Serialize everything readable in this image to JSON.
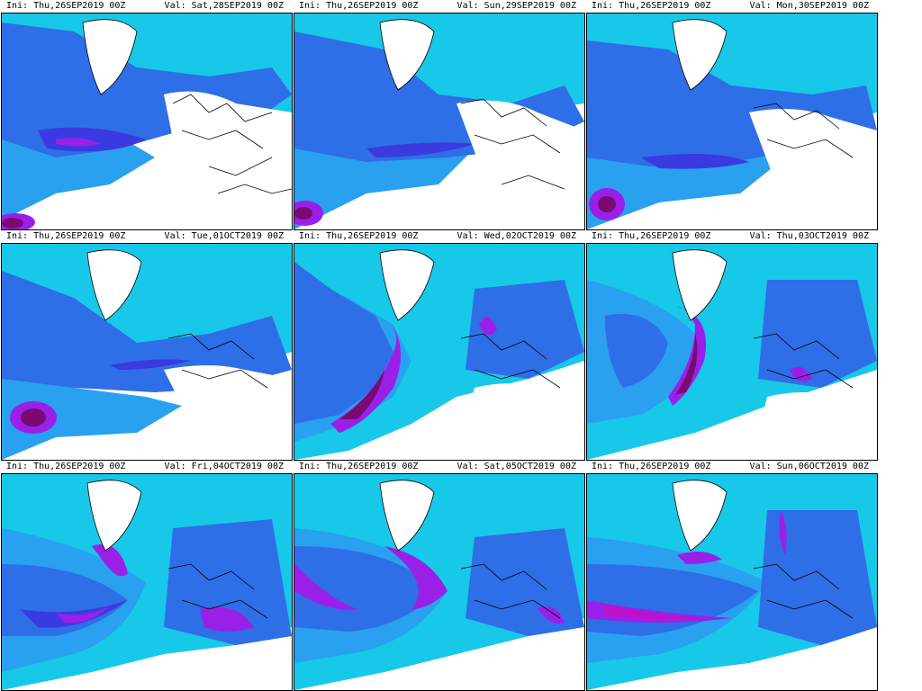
{
  "colors": {
    "land_line": "#000000",
    "low": "#41e0a8",
    "light": "#18c8e8",
    "mid": "#2aa0f0",
    "med": "#2e6ee6",
    "high": "#3a3ae0",
    "vhigh": "#9a20e8",
    "max": "#c010c8",
    "core": "#7a0a70",
    "background": "#ffffff"
  },
  "panels": [
    {
      "ini": "Ini: Thu,26SEP2019 00Z",
      "val": "Val: Sat,28SEP2019 00Z",
      "jet_level": 0.35
    },
    {
      "ini": "Ini: Thu,26SEP2019 00Z",
      "val": "Val: Sun,29SEP2019 00Z",
      "jet_level": 0.4
    },
    {
      "ini": "Ini: Thu,26SEP2019 00Z",
      "val": "Val: Mon,30SEP2019 00Z",
      "jet_level": 0.4
    },
    {
      "ini": "Ini: Thu,26SEP2019 00Z",
      "val": "Val: Tue,01OCT2019 00Z",
      "jet_level": 0.45
    },
    {
      "ini": "Ini: Thu,26SEP2019 00Z",
      "val": "Val: Wed,02OCT2019 00Z",
      "jet_level": 0.8
    },
    {
      "ini": "Ini: Thu,26SEP2019 00Z",
      "val": "Val: Thu,03OCT2019 00Z",
      "jet_level": 0.85
    },
    {
      "ini": "Ini: Thu,26SEP2019 00Z",
      "val": "Val: Fri,04OCT2019 00Z",
      "jet_level": 0.6
    },
    {
      "ini": "Ini: Thu,26SEP2019 00Z",
      "val": "Val: Sat,05OCT2019 00Z",
      "jet_level": 0.6
    },
    {
      "ini": "Ini: Thu,26SEP2019 00Z",
      "val": "Val: Sun,06OCT2019 00Z",
      "jet_level": 0.7
    }
  ]
}
